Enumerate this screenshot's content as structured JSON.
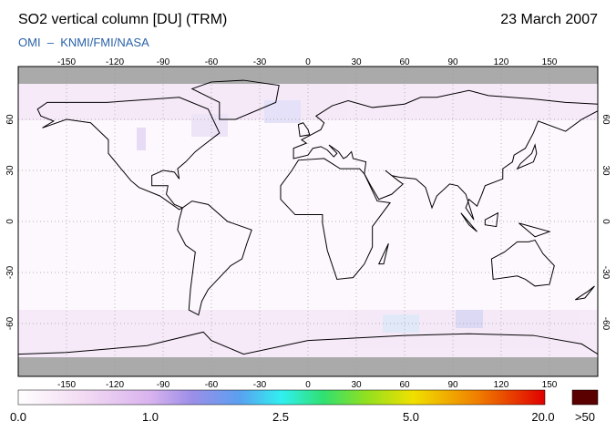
{
  "header": {
    "title": "SO2 vertical column [DU] (TRM)",
    "date": "23 March 2007",
    "subtitle": "OMI  –  KNMI/FMI/NASA"
  },
  "map": {
    "lon_ticks": [
      -150,
      -120,
      -90,
      -60,
      -30,
      0,
      30,
      60,
      90,
      120,
      150
    ],
    "lat_ticks": [
      60,
      30,
      0,
      -30,
      -60
    ]
  },
  "colorbar": {
    "labels": [
      "0.0",
      "1.0",
      "2.5",
      "5.0",
      "20.0"
    ],
    "overflow_label": ">50"
  }
}
